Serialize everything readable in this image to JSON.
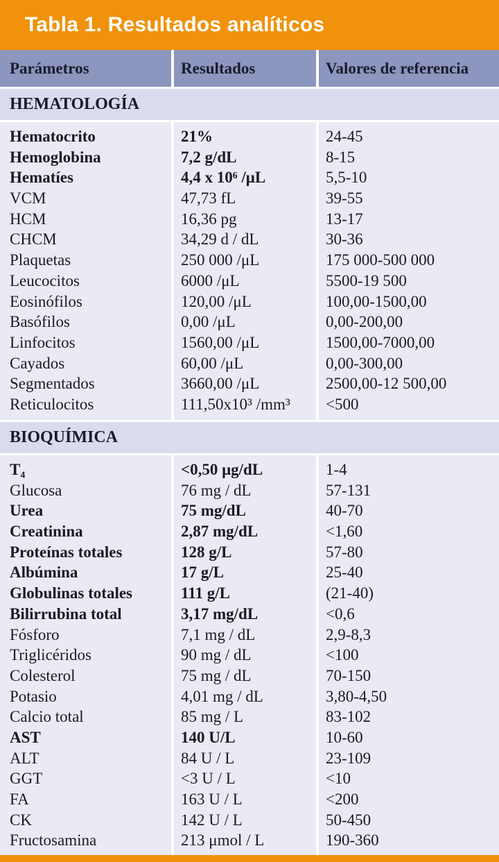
{
  "title": "Tabla 1. Resultados analíticos",
  "columns": [
    "Parámetros",
    "Resultados",
    "Valores de referencia"
  ],
  "colors": {
    "accent_orange": "#F0920A",
    "header_blue": "#8C96BE",
    "section_band": "#D9DCEC",
    "row_background": "#E9EAF4",
    "text": "#1a1a26",
    "title_text": "#ffffff"
  },
  "sections": [
    {
      "name": "HEMATOLOGÍA",
      "block_height": 429,
      "rows": [
        {
          "param": "Hematocrito",
          "result": "21%",
          "ref": "24-45",
          "bold": true
        },
        {
          "param": "Hemoglobina",
          "result": "7,2 g/dL",
          "ref": "8-15",
          "bold": true
        },
        {
          "param": "Hematíes",
          "result": "4,4 x 10⁶ /μL",
          "ref": "5,5-10",
          "bold": true
        },
        {
          "param": "VCM",
          "result": "47,73 fL",
          "ref": "39-55",
          "bold": false
        },
        {
          "param": "HCM",
          "result": "16,36 pg",
          "ref": "13-17",
          "bold": false
        },
        {
          "param": "CHCM",
          "result": "34,29 d / dL",
          "ref": "30-36",
          "bold": false
        },
        {
          "param": "Plaquetas",
          "result": "250 000 /μL",
          "ref": "175 000-500 000",
          "bold": false
        },
        {
          "param": "Leucocitos",
          "result": "6000 /μL",
          "ref": "5500-19 500",
          "bold": false
        },
        {
          "param": "Eosinófilos",
          "result": "120,00 /μL",
          "ref": "100,00-1500,00",
          "bold": false
        },
        {
          "param": "Basófilos",
          "result": "0,00 /μL",
          "ref": "0,00-200,00",
          "bold": false
        },
        {
          "param": "Linfocitos",
          "result": "1560,00 /μL",
          "ref": "1500,00-7000,00",
          "bold": false
        },
        {
          "param": "Cayados",
          "result": "60,00 /μL",
          "ref": "0,00-300,00",
          "bold": false
        },
        {
          "param": "Segmentados",
          "result": "3660,00 /μL",
          "ref": "2500,00-12 500,00",
          "bold": false
        },
        {
          "param": "Reticulocitos",
          "result": "111,50x10³ /mm³",
          "ref": "<500",
          "bold": false
        }
      ]
    },
    {
      "name": "BIOQUÍMICA",
      "block_height": 576,
      "rows": [
        {
          "param": "T₄",
          "result": "<0,50 μg/dL",
          "ref": "1-4",
          "bold": true
        },
        {
          "param": "Glucosa",
          "result": "76 mg / dL",
          "ref": "57-131",
          "bold": false
        },
        {
          "param": "Urea",
          "result": "75 mg/dL",
          "ref": "40-70",
          "bold": true
        },
        {
          "param": "Creatinina",
          "result": "2,87 mg/dL",
          "ref": "<1,60",
          "bold": true
        },
        {
          "param": "Proteínas totales",
          "result": "128 g/L",
          "ref": "57-80",
          "bold": true
        },
        {
          "param": "Albúmina",
          "result": "17 g/L",
          "ref": "25-40",
          "bold": true
        },
        {
          "param": "Globulinas totales",
          "result": "111 g/L",
          "ref": "(21-40)",
          "bold": true
        },
        {
          "param": "Bilirrubina total",
          "result": "3,17 mg/dL",
          "ref": "<0,6",
          "bold": true
        },
        {
          "param": "Fósforo",
          "result": "7,1 mg / dL",
          "ref": "2,9-8,3",
          "bold": false
        },
        {
          "param": "Triglicéridos",
          "result": "90 mg / dL",
          "ref": "<100",
          "bold": false
        },
        {
          "param": "Colesterol",
          "result": "75 mg / dL",
          "ref": "70-150",
          "bold": false
        },
        {
          "param": "Potasio",
          "result": "4,01 mg / dL",
          "ref": "3,80-4,50",
          "bold": false
        },
        {
          "param": "Calcio total",
          "result": "85 mg / L",
          "ref": "83-102",
          "bold": false
        },
        {
          "param": "AST",
          "result": "140 U/L",
          "ref": "10-60",
          "bold": true
        },
        {
          "param": "ALT",
          "result": "84 U / L",
          "ref": "23-109",
          "bold": false
        },
        {
          "param": "GGT",
          "result": "<3 U / L",
          "ref": "<10",
          "bold": false
        },
        {
          "param": "FA",
          "result": "163 U / L",
          "ref": "<200",
          "bold": false
        },
        {
          "param": "CK",
          "result": "142 U / L",
          "ref": "50-450",
          "bold": false
        },
        {
          "param": "Fructosamina",
          "result": "213 μmol / L",
          "ref": "190-360",
          "bold": false
        }
      ]
    }
  ]
}
